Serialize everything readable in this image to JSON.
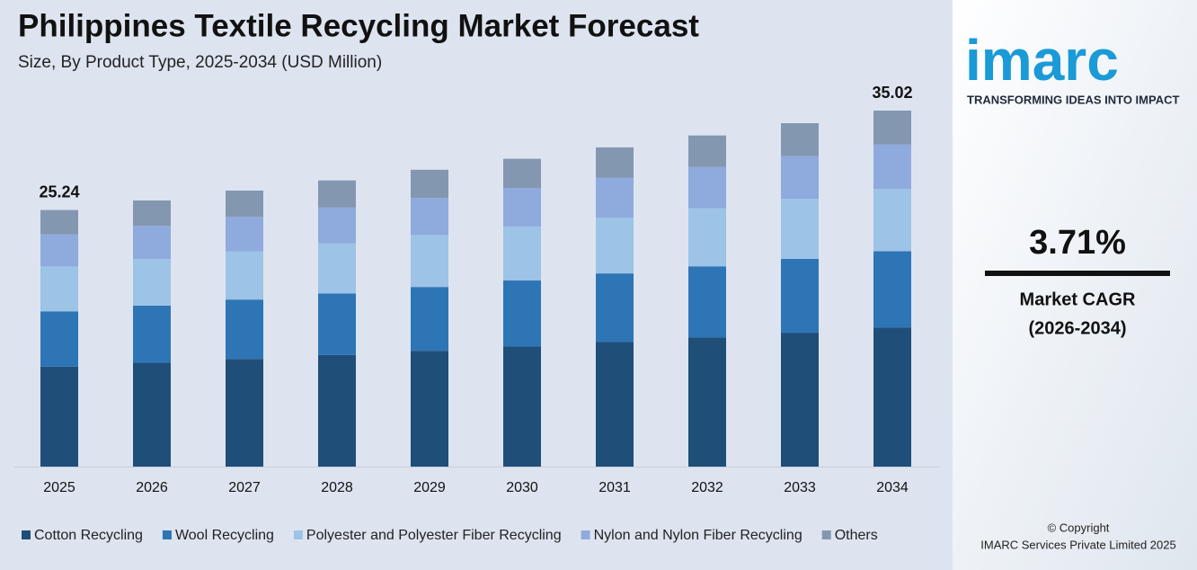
{
  "chart_data": {
    "type": "stacked_bar",
    "title": "Philippines Textile Recycling Market Forecast",
    "subtitle": "Size, By Product Type, 2025-2034 (USD Million)",
    "categories": [
      "2025",
      "2026",
      "2027",
      "2028",
      "2029",
      "2030",
      "2031",
      "2032",
      "2033",
      "2034"
    ],
    "series": [
      {
        "name": "Cotton Recycling",
        "color": "#1f4e79",
        "values": [
          9.84,
          10.21,
          10.59,
          10.98,
          11.39,
          11.81,
          12.25,
          12.7,
          13.17,
          13.66
        ]
      },
      {
        "name": "Wool Recycling",
        "color": "#2e75b6",
        "values": [
          5.43,
          5.63,
          5.84,
          6.05,
          6.28,
          6.51,
          6.75,
          7.0,
          7.26,
          7.53
        ]
      },
      {
        "name": "Polyester and Polyester Fiber Recycling",
        "color": "#9dc3e6",
        "values": [
          4.42,
          4.58,
          4.75,
          4.93,
          5.11,
          5.3,
          5.5,
          5.7,
          5.91,
          6.13
        ]
      },
      {
        "name": "Nylon and Nylon Fiber Recycling",
        "color": "#8faadc",
        "values": [
          3.16,
          3.27,
          3.39,
          3.52,
          3.65,
          3.79,
          3.93,
          4.07,
          4.22,
          4.38
        ]
      },
      {
        "name": "Others",
        "color": "#8497b0",
        "values": [
          2.39,
          2.49,
          2.58,
          2.67,
          2.77,
          2.87,
          2.97,
          3.1,
          3.22,
          3.32
        ]
      }
    ],
    "totals": [
      25.24,
      null,
      null,
      null,
      null,
      null,
      null,
      null,
      null,
      35.02
    ],
    "legend": "bottom"
  },
  "panel": {
    "logo": "imarc",
    "tagline": "TRANSFORMING IDEAS INTO IMPACT",
    "cagr": "3.71%",
    "cagr_label": "Market CAGR",
    "cagr_period": "(2026-2034)",
    "copyright": "© Copyright",
    "company": "IMARC Services Private Limited 2025"
  }
}
